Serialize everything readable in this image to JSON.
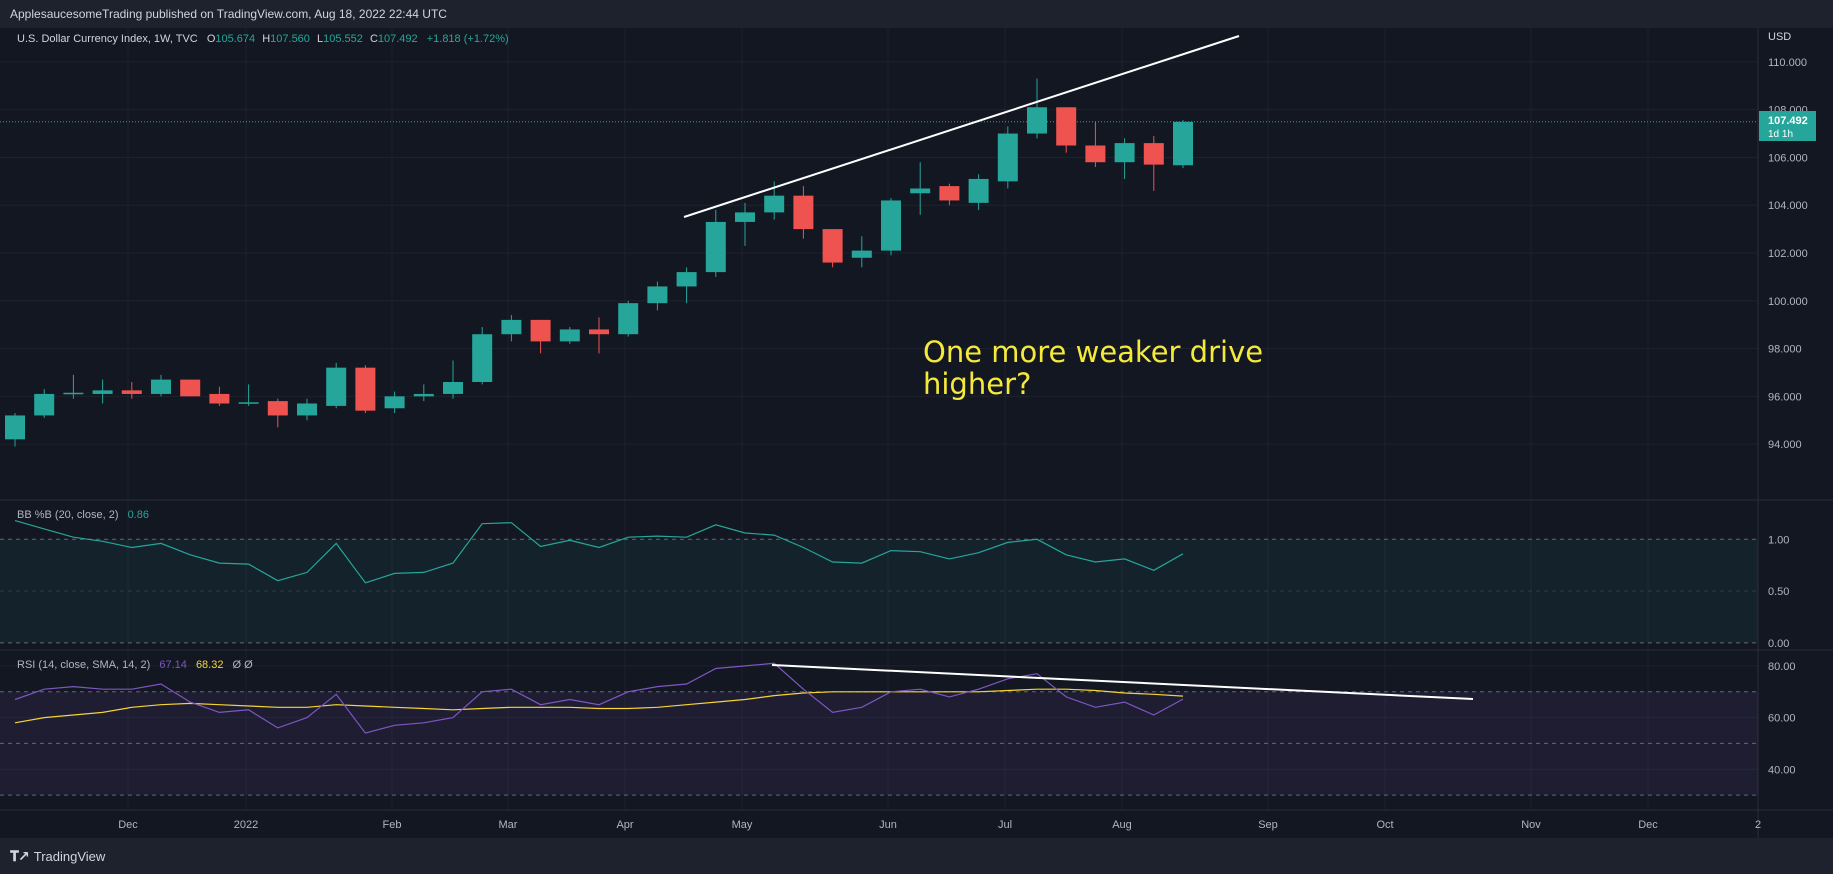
{
  "header": {
    "publish_line": "ApplesaucesomeTrading published on TradingView.com, Aug 18, 2022 22:44 UTC"
  },
  "legend": {
    "symbol": "U.S. Dollar Currency Index, 1W, TVC",
    "o_label": "O",
    "o_value": "105.674",
    "h_label": "H",
    "h_value": "107.560",
    "l_label": "L",
    "l_value": "105.552",
    "c_label": "C",
    "c_value": "107.492",
    "change": "+1.818 (+1.72%)"
  },
  "price_axis": {
    "currency": "USD",
    "last_price": "107.492",
    "countdown": "1d 1h"
  },
  "annotation": {
    "line1": "One more weaker drive",
    "line2": "higher?"
  },
  "bb_panel": {
    "title": "BB %B (20, close, 2)",
    "value": "0.86"
  },
  "rsi_panel": {
    "title": "RSI (14, close, SMA, 14, 2)",
    "rsi_value": "67.14",
    "ma_value": "68.32",
    "extra": "Ø Ø"
  },
  "footer": {
    "brand": "TradingView"
  },
  "colors": {
    "background": "#131722",
    "up": "#26a69a",
    "down": "#ef5350",
    "bb_line": "#26a69a",
    "rsi_line": "#7e57c2",
    "rsi_ma": "#f5d536",
    "annotation": "#f5e93a"
  },
  "chart_data": [
    {
      "type": "candlestick",
      "title": "U.S. Dollar Currency Index, 1W, TVC",
      "ylabel": "USD",
      "ylim": [
        93,
        111
      ],
      "y_ticks": [
        "94.000",
        "96.000",
        "98.000",
        "100.000",
        "102.000",
        "104.000",
        "106.000",
        "108.000",
        "110.000"
      ],
      "x_ticks": [
        "Dec",
        "2022",
        "Feb",
        "Mar",
        "Apr",
        "May",
        "Jun",
        "Jul",
        "Aug",
        "Sep",
        "Oct",
        "Nov",
        "Dec",
        "2"
      ],
      "series": [
        {
          "o": 94.2,
          "h": 95.3,
          "l": 93.9,
          "c": 95.2
        },
        {
          "o": 95.2,
          "h": 96.3,
          "l": 95.1,
          "c": 96.1
        },
        {
          "o": 96.1,
          "h": 96.9,
          "l": 95.9,
          "c": 96.15
        },
        {
          "o": 96.1,
          "h": 96.7,
          "l": 95.7,
          "c": 96.25
        },
        {
          "o": 96.25,
          "h": 96.6,
          "l": 95.9,
          "c": 96.1
        },
        {
          "o": 96.1,
          "h": 96.9,
          "l": 96.0,
          "c": 96.7
        },
        {
          "o": 96.7,
          "h": 96.7,
          "l": 96.0,
          "c": 96.0
        },
        {
          "o": 96.1,
          "h": 96.4,
          "l": 95.6,
          "c": 95.7
        },
        {
          "o": 95.7,
          "h": 96.5,
          "l": 95.6,
          "c": 95.75
        },
        {
          "o": 95.8,
          "h": 95.9,
          "l": 94.7,
          "c": 95.2
        },
        {
          "o": 95.2,
          "h": 95.9,
          "l": 95.0,
          "c": 95.7
        },
        {
          "o": 95.6,
          "h": 97.4,
          "l": 95.5,
          "c": 97.2
        },
        {
          "o": 97.2,
          "h": 97.3,
          "l": 95.3,
          "c": 95.4
        },
        {
          "o": 95.5,
          "h": 96.2,
          "l": 95.3,
          "c": 96.0
        },
        {
          "o": 96.0,
          "h": 96.5,
          "l": 95.8,
          "c": 96.1
        },
        {
          "o": 96.1,
          "h": 97.5,
          "l": 95.9,
          "c": 96.6
        },
        {
          "o": 96.6,
          "h": 98.9,
          "l": 96.5,
          "c": 98.6
        },
        {
          "o": 98.6,
          "h": 99.4,
          "l": 98.3,
          "c": 99.2
        },
        {
          "o": 99.2,
          "h": 99.2,
          "l": 97.8,
          "c": 98.3
        },
        {
          "o": 98.3,
          "h": 98.9,
          "l": 98.2,
          "c": 98.8
        },
        {
          "o": 98.8,
          "h": 99.3,
          "l": 97.8,
          "c": 98.6
        },
        {
          "o": 98.6,
          "h": 100.0,
          "l": 98.5,
          "c": 99.9
        },
        {
          "o": 99.9,
          "h": 100.8,
          "l": 99.6,
          "c": 100.6
        },
        {
          "o": 100.6,
          "h": 101.4,
          "l": 99.9,
          "c": 101.2
        },
        {
          "o": 101.2,
          "h": 103.8,
          "l": 101.0,
          "c": 103.3
        },
        {
          "o": 103.3,
          "h": 104.1,
          "l": 102.3,
          "c": 103.7
        },
        {
          "o": 103.7,
          "h": 105.0,
          "l": 103.4,
          "c": 104.4
        },
        {
          "o": 104.4,
          "h": 104.8,
          "l": 102.6,
          "c": 103.0
        },
        {
          "o": 103.0,
          "h": 103.0,
          "l": 101.4,
          "c": 101.6
        },
        {
          "o": 101.8,
          "h": 102.7,
          "l": 101.4,
          "c": 102.1
        },
        {
          "o": 102.1,
          "h": 104.3,
          "l": 101.9,
          "c": 104.2
        },
        {
          "o": 104.5,
          "h": 105.8,
          "l": 103.6,
          "c": 104.7
        },
        {
          "o": 104.8,
          "h": 104.9,
          "l": 104.0,
          "c": 104.2
        },
        {
          "o": 104.1,
          "h": 105.3,
          "l": 103.8,
          "c": 105.1
        },
        {
          "o": 105.0,
          "h": 107.3,
          "l": 104.7,
          "c": 107.0
        },
        {
          "o": 107.0,
          "h": 109.3,
          "l": 106.8,
          "c": 108.1
        },
        {
          "o": 108.1,
          "h": 108.1,
          "l": 106.2,
          "c": 106.5
        },
        {
          "o": 106.5,
          "h": 107.5,
          "l": 105.6,
          "c": 105.8
        },
        {
          "o": 105.8,
          "h": 106.8,
          "l": 105.1,
          "c": 106.6
        },
        {
          "o": 106.6,
          "h": 106.9,
          "l": 104.6,
          "c": 105.7
        },
        {
          "o": 105.674,
          "h": 107.56,
          "l": 105.552,
          "c": 107.492
        }
      ]
    },
    {
      "type": "line",
      "title": "BB %B (20, close, 2)",
      "ylim": [
        -0.05,
        1.35
      ],
      "y_ticks": [
        "0.00",
        "0.50",
        "1.00"
      ],
      "series": [
        {
          "name": "BB %B",
          "values": [
            1.18,
            1.1,
            1.02,
            0.98,
            0.92,
            0.96,
            0.85,
            0.77,
            0.76,
            0.6,
            0.68,
            0.96,
            0.58,
            0.67,
            0.68,
            0.77,
            1.15,
            1.16,
            0.93,
            0.99,
            0.92,
            1.02,
            1.03,
            1.02,
            1.14,
            1.06,
            1.04,
            0.92,
            0.78,
            0.77,
            0.89,
            0.88,
            0.81,
            0.87,
            0.97,
            1.0,
            0.85,
            0.78,
            0.81,
            0.7,
            0.86
          ]
        }
      ]
    },
    {
      "type": "line",
      "title": "RSI (14, close, SMA, 14, 2)",
      "ylim": [
        25,
        85
      ],
      "y_ticks": [
        "40.00",
        "60.00",
        "80.00"
      ],
      "series": [
        {
          "name": "RSI",
          "values": [
            67,
            71,
            72,
            71,
            71,
            73,
            66,
            62,
            63,
            56,
            60,
            69,
            54,
            57,
            58,
            60,
            70,
            71,
            65,
            67,
            65,
            70,
            72,
            73,
            79,
            80,
            81,
            71,
            62,
            64,
            70,
            71,
            68,
            71,
            75,
            77,
            68,
            64,
            66,
            61,
            67.14
          ]
        },
        {
          "name": "RSI-based MA",
          "values": [
            58,
            60,
            61,
            62,
            64,
            65,
            65.5,
            65,
            64.5,
            64,
            64,
            65,
            64.5,
            64,
            63.5,
            63,
            63.5,
            64,
            64,
            64,
            63.5,
            63.5,
            64,
            65,
            66,
            67,
            68.5,
            69.5,
            70,
            70,
            70,
            70,
            70,
            70,
            70.5,
            71,
            71,
            70.5,
            69.5,
            69,
            68.32
          ]
        }
      ]
    }
  ]
}
